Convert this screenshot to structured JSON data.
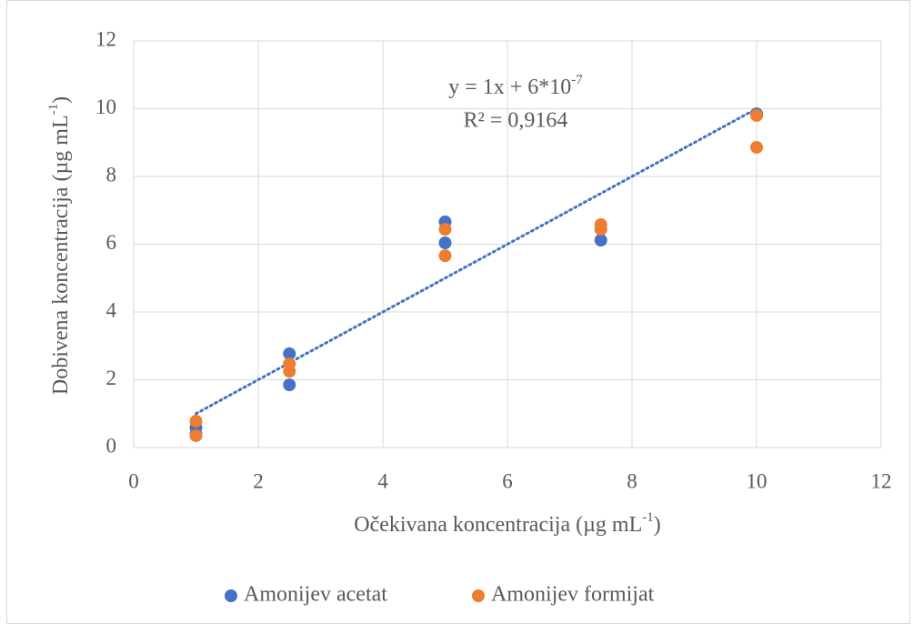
{
  "chart_data": {
    "type": "scatter",
    "x_label": [
      "Očekivana koncentracija (µg mL",
      "-1",
      ")"
    ],
    "y_label": [
      "Dobivena koncentracija (µg mL",
      "-1",
      ")"
    ],
    "series": [
      {
        "name": "Amonijev acetat",
        "color": "#4472c4",
        "x": [
          1,
          1,
          2.5,
          2.5,
          5,
          5,
          7.5,
          10
        ],
        "values": [
          0.59,
          0.4,
          2.77,
          1.85,
          6.66,
          6.04,
          6.12,
          9.85
        ]
      },
      {
        "name": "Amonijev formijat",
        "color": "#ed7d31",
        "x": [
          1,
          1,
          2.5,
          2.5,
          5,
          5,
          7.5,
          7.5,
          10,
          10
        ],
        "values": [
          0.78,
          0.35,
          2.47,
          2.25,
          6.44,
          5.66,
          6.58,
          6.44,
          9.8,
          8.86
        ]
      }
    ],
    "trendline": {
      "x_range": [
        1,
        10
      ],
      "slope": 1,
      "intercept": 6e-07,
      "color": "#4472c4",
      "equation": [
        "y = 1x + 6*10",
        "-7"
      ],
      "r2_label": "R² = 0,9164"
    },
    "xlim": [
      0,
      12
    ],
    "xticks": [
      0,
      2,
      4,
      6,
      8,
      10,
      12
    ],
    "ylim": [
      0,
      12
    ],
    "yticks": [
      0,
      2,
      4,
      6,
      8,
      10,
      12
    ],
    "grid": true,
    "legend": "bottom"
  }
}
